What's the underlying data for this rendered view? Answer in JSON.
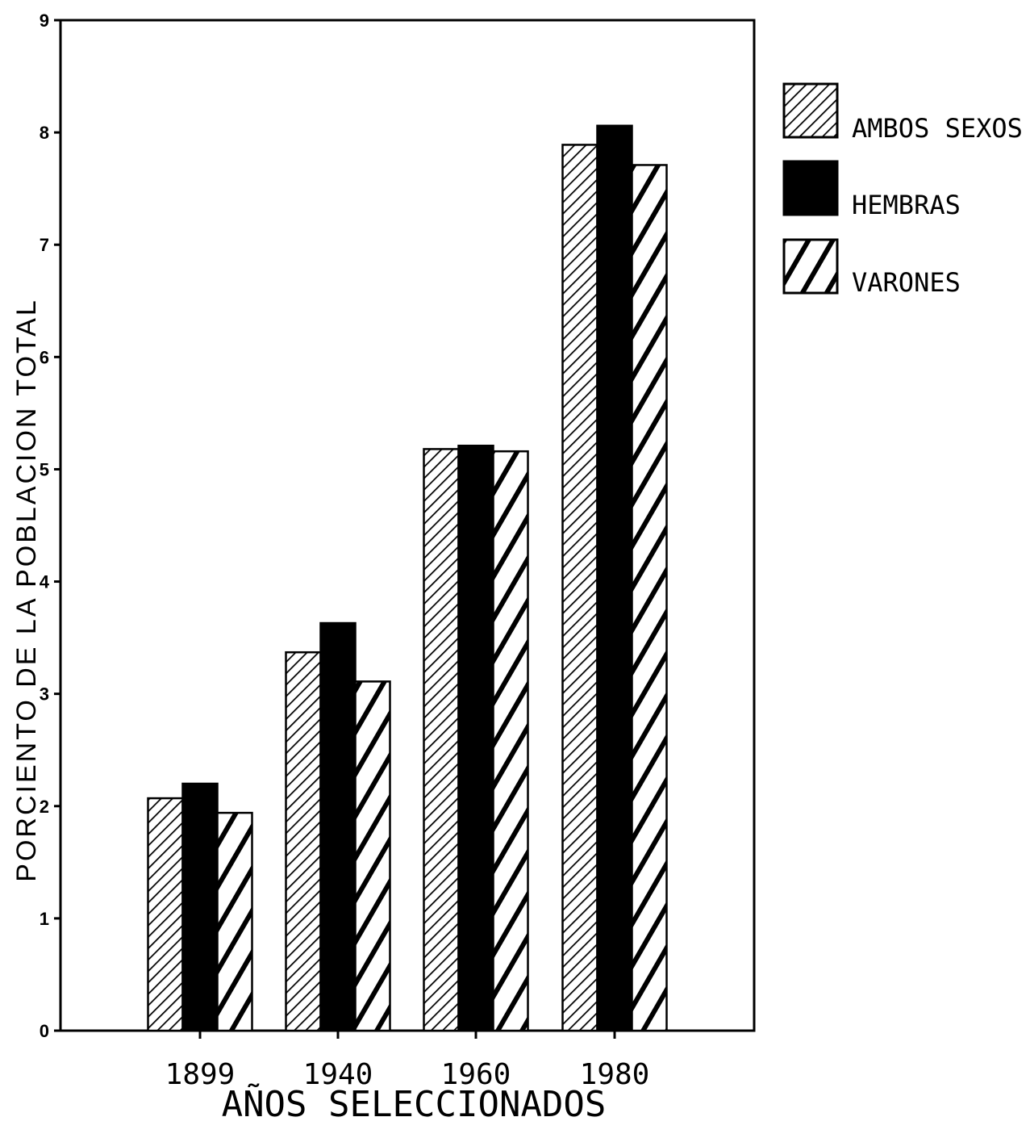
{
  "chart_data": {
    "type": "bar",
    "categories": [
      "1899",
      "1940",
      "1960",
      "1980"
    ],
    "series": [
      {
        "name": "AMBOS SEXOS",
        "values": [
          2.07,
          3.37,
          5.18,
          7.89
        ],
        "pattern": "hatch-fine"
      },
      {
        "name": "HEMBRAS",
        "values": [
          2.2,
          3.63,
          5.21,
          8.06
        ],
        "pattern": "solid"
      },
      {
        "name": "VARONES",
        "values": [
          1.94,
          3.11,
          5.16,
          7.71
        ],
        "pattern": "hatch-wide"
      }
    ],
    "title": "",
    "xlabel": "AÑOS SELECCIONADOS",
    "ylabel": "PORCIENTO DE LA POBLACION TOTAL",
    "ylim": [
      0,
      9
    ],
    "yticks": [
      "0",
      "1",
      "2",
      "3",
      "4",
      "5",
      "6",
      "7",
      "8",
      "9"
    ],
    "grid": false,
    "legend_position": "top-right",
    "colors": {
      "ink": "#000000",
      "background": "#ffffff"
    }
  }
}
